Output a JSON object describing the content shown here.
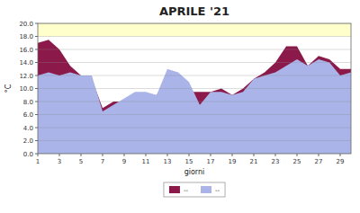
{
  "chart_data": {
    "type": "area",
    "title": "APRILE '21",
    "x_label": "giorni",
    "y_label": "°C",
    "x": [
      1,
      2,
      3,
      4,
      5,
      6,
      7,
      8,
      9,
      10,
      11,
      12,
      13,
      14,
      15,
      16,
      17,
      18,
      19,
      20,
      21,
      22,
      23,
      24,
      25,
      26,
      27,
      28,
      29,
      30
    ],
    "series": [
      {
        "name": "--",
        "color": "#8B1A4A",
        "values": [
          17.0,
          17.5,
          16.0,
          13.5,
          12.0,
          11.5,
          7.0,
          8.0,
          8.0,
          9.0,
          8.5,
          9.0,
          11.5,
          11.5,
          9.5,
          9.5,
          9.5,
          10.0,
          9.0,
          10.0,
          11.5,
          12.5,
          14.0,
          16.5,
          16.5,
          13.5,
          15.0,
          14.5,
          13.0,
          13.0
        ]
      },
      {
        "name": "--",
        "color": "#aab4e8",
        "values": [
          12.0,
          12.5,
          12.0,
          12.5,
          12.0,
          12.0,
          6.5,
          7.5,
          8.5,
          9.5,
          9.5,
          9.0,
          13.0,
          12.5,
          11.0,
          7.5,
          9.5,
          9.5,
          9.0,
          9.5,
          11.5,
          12.0,
          12.5,
          13.5,
          14.5,
          13.5,
          14.5,
          14.0,
          12.0,
          12.5
        ]
      }
    ],
    "band": {
      "from": 18.0,
      "to": 20.0,
      "color": "#ffffcc"
    },
    "xlim": [
      1,
      30
    ],
    "ylim": [
      0,
      20
    ],
    "xticks": [
      1,
      3,
      5,
      7,
      9,
      11,
      13,
      15,
      17,
      19,
      21,
      23,
      25,
      27,
      29
    ],
    "yticks": [
      {
        "value": 0.0,
        "label": "0.0"
      },
      {
        "value": 2.0,
        "label": "2.0"
      },
      {
        "value": 4.0,
        "label": "4.0"
      },
      {
        "value": 6.0,
        "label": "6.0"
      },
      {
        "value": 8.0,
        "label": "8.0"
      },
      {
        "value": 10.0,
        "label": "10.0"
      },
      {
        "value": 12.0,
        "label": "12.0"
      },
      {
        "value": 14.0,
        "label": "14.0"
      },
      {
        "value": 16.0,
        "label": "16.0"
      },
      {
        "value": 18.0,
        "label": "18.0"
      },
      {
        "value": 20.0,
        "label": "20.0"
      }
    ],
    "grid": true,
    "legend": "bottom"
  }
}
